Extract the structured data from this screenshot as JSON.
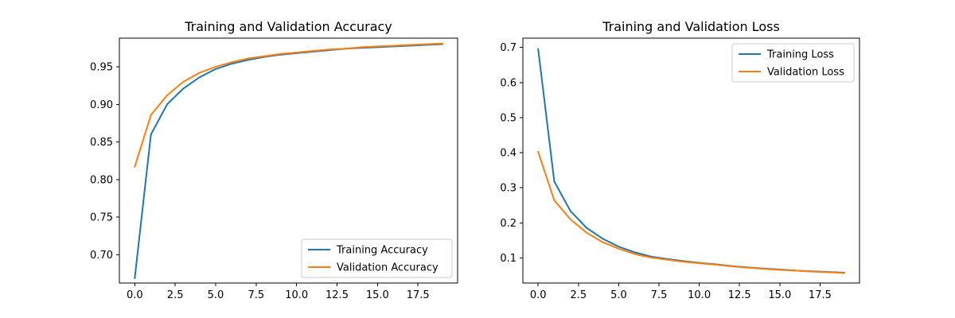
{
  "chart_data": [
    {
      "type": "line",
      "title": "Training and Validation Accuracy",
      "xlabel": "",
      "ylabel": "",
      "xlim": [
        -0.95,
        19.95
      ],
      "ylim": [
        0.6625,
        0.988
      ],
      "xticks": [
        0.0,
        2.5,
        5.0,
        7.5,
        10.0,
        12.5,
        15.0,
        17.5
      ],
      "xtick_labels": [
        "0.0",
        "2.5",
        "5.0",
        "7.5",
        "10.0",
        "12.5",
        "15.0",
        "17.5"
      ],
      "yticks": [
        0.7,
        0.75,
        0.8,
        0.85,
        0.9,
        0.95
      ],
      "ytick_labels": [
        "0.70",
        "0.75",
        "0.80",
        "0.85",
        "0.90",
        "0.95"
      ],
      "legend_position": "lower-right",
      "x": [
        0,
        1,
        2,
        3,
        4,
        5,
        6,
        7,
        8,
        9,
        10,
        11,
        12,
        13,
        14,
        15,
        16,
        17,
        18,
        19
      ],
      "series": [
        {
          "name": "Training Accuracy",
          "color": "#1f77b4",
          "values": [
            0.669,
            0.86,
            0.9,
            0.921,
            0.936,
            0.947,
            0.954,
            0.959,
            0.963,
            0.966,
            0.968,
            0.97,
            0.972,
            0.974,
            0.975,
            0.976,
            0.977,
            0.978,
            0.979,
            0.98
          ]
        },
        {
          "name": "Validation Accuracy",
          "color": "#ff7f0e",
          "values": [
            0.817,
            0.886,
            0.912,
            0.93,
            0.942,
            0.95,
            0.956,
            0.961,
            0.964,
            0.967,
            0.969,
            0.971,
            0.973,
            0.974,
            0.976,
            0.977,
            0.978,
            0.979,
            0.98,
            0.981
          ]
        }
      ]
    },
    {
      "type": "line",
      "title": "Training and Validation Loss",
      "xlabel": "",
      "ylabel": "",
      "xlim": [
        -0.95,
        19.95
      ],
      "ylim": [
        0.0285,
        0.7265
      ],
      "xticks": [
        0.0,
        2.5,
        5.0,
        7.5,
        10.0,
        12.5,
        15.0,
        17.5
      ],
      "xtick_labels": [
        "0.0",
        "2.5",
        "5.0",
        "7.5",
        "10.0",
        "12.5",
        "15.0",
        "17.5"
      ],
      "yticks": [
        0.1,
        0.2,
        0.3,
        0.4,
        0.5,
        0.6,
        0.7
      ],
      "ytick_labels": [
        "0.1",
        "0.2",
        "0.3",
        "0.4",
        "0.5",
        "0.6",
        "0.7"
      ],
      "legend_position": "upper-right",
      "x": [
        0,
        1,
        2,
        3,
        4,
        5,
        6,
        7,
        8,
        9,
        10,
        11,
        12,
        13,
        14,
        15,
        16,
        17,
        18,
        19
      ],
      "series": [
        {
          "name": "Training Loss",
          "color": "#1f77b4",
          "values": [
            0.695,
            0.318,
            0.234,
            0.186,
            0.155,
            0.132,
            0.116,
            0.104,
            0.097,
            0.091,
            0.086,
            0.082,
            0.077,
            0.073,
            0.07,
            0.067,
            0.064,
            0.062,
            0.06,
            0.058
          ]
        },
        {
          "name": "Validation Loss",
          "color": "#ff7f0e",
          "values": [
            0.402,
            0.264,
            0.21,
            0.172,
            0.145,
            0.126,
            0.111,
            0.101,
            0.095,
            0.089,
            0.085,
            0.081,
            0.076,
            0.072,
            0.069,
            0.066,
            0.064,
            0.061,
            0.059,
            0.057
          ]
        }
      ]
    }
  ]
}
